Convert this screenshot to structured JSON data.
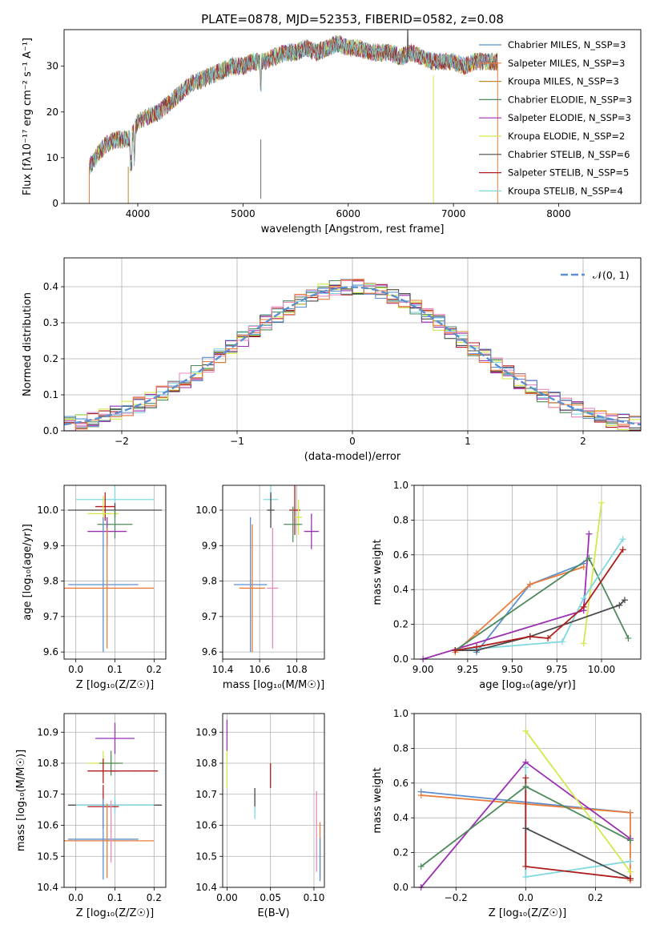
{
  "figure": {
    "title": "PLATE=0878, MJD=52353, FIBERID=0582, z=0.08"
  },
  "colors": {
    "chabrier_miles": "#5b8fd0",
    "salpeter_miles": "#ea7c3b",
    "kroupa_miles": "#c0892c",
    "chabrier_elodie": "#4f8a5e",
    "salpeter_elodie": "#9b2fb2",
    "kroupa_elodie": "#d4e84c",
    "chabrier_stelib": "#4a4a4a",
    "salpeter_stelib": "#b01c1c",
    "kroupa_stelib": "#7fd8e0",
    "pink": "#e88ac0",
    "grid": "#b0b0b0",
    "normal_curve": "#5b8fd0"
  },
  "chart_data": [
    {
      "id": "spectrum",
      "type": "line",
      "title": "PLATE=0878, MJD=52353, FIBERID=0582, z=0.08",
      "xlabel": "wavelength [Angstrom, rest frame]",
      "ylabel": "Flux [fλ10⁻¹⁷ erg cm⁻² s⁻¹ A⁻¹]",
      "xlim": [
        3300,
        8780
      ],
      "ylim": [
        0,
        38
      ],
      "xticks": [
        "4000",
        "5000",
        "6000",
        "7000",
        "8000"
      ],
      "yticks": [
        "0",
        "10",
        "20",
        "30"
      ],
      "legend_position": "top-right",
      "legend": [
        "Chabrier MILES, N_SSP=3",
        "Salpeter MILES, N_SSP=3",
        "Kroupa MILES, N_SSP=3",
        "Chabrier ELODIE, N_SSP=3",
        "Salpeter ELODIE, N_SSP=3",
        "Kroupa ELODIE, N_SSP=2",
        "Chabrier STELIB, N_SSP=6",
        "Salpeter STELIB, N_SSP=5",
        "Kroupa STELIB, N_SSP=4"
      ],
      "envelope": {
        "x": [
          3540,
          3600,
          3700,
          3800,
          3900,
          3950,
          4000,
          4100,
          4200,
          4300,
          4400,
          4500,
          4600,
          4700,
          4800,
          4900,
          5000,
          5100,
          5200,
          5300,
          5400,
          5500,
          5600,
          5700,
          5800,
          5900,
          6000,
          6100,
          6200,
          6300,
          6400,
          6500,
          6600,
          6700,
          6800,
          6900,
          7000,
          7100,
          7200,
          7300,
          7400,
          7420
        ],
        "y": [
          8,
          10,
          13,
          14,
          14,
          15,
          18,
          19,
          20,
          22,
          24,
          26,
          27,
          28,
          29,
          30,
          30,
          31,
          31,
          32,
          33,
          33,
          34,
          33,
          34,
          35,
          34,
          34,
          33,
          33,
          33,
          32,
          33,
          32,
          31,
          31,
          31,
          30,
          31,
          31,
          31,
          31
        ]
      }
    },
    {
      "id": "residuals",
      "type": "histogram",
      "xlabel": "(data-model)/error",
      "ylabel": "Normed distribution",
      "xlim": [
        -2.5,
        2.5
      ],
      "ylim": [
        0,
        0.48
      ],
      "xticks": [
        "−2",
        "−1",
        "0",
        "1",
        "2"
      ],
      "yticks": [
        "0.0",
        "0.1",
        "0.2",
        "0.3",
        "0.4"
      ],
      "bin_width": 0.1,
      "legend_position": "top-right",
      "legend": [
        "𝒩(0, 1)"
      ],
      "normal_curve": {
        "mean": 0,
        "sigma": 1
      }
    },
    {
      "id": "age_vs_Z",
      "type": "errorbar",
      "xlabel": "Z [log₁₀(Z/Z☉)]",
      "ylabel": "age [log₁₀(age/yr)]",
      "xlim": [
        -0.03,
        0.23
      ],
      "ylim": [
        9.58,
        10.07
      ],
      "xticks": [
        "0.0",
        "0.1",
        "0.2"
      ],
      "yticks": [
        "9.6",
        "9.7",
        "9.8",
        "9.9",
        "10.0"
      ],
      "points": [
        {
          "x": 0.1,
          "xe": 0.1,
          "y": 10.03,
          "ye": 0.04,
          "c": "kroupa_stelib"
        },
        {
          "x": 0.1,
          "xe": 0.12,
          "y": 10.0,
          "ye": 0.02,
          "c": "chabrier_stelib"
        },
        {
          "x": 0.075,
          "xe": 0.025,
          "y": 10.01,
          "ye": 0.04,
          "c": "salpeter_stelib"
        },
        {
          "x": 0.07,
          "xe": 0.04,
          "y": 9.99,
          "ye": 0.05,
          "c": "kroupa_elodie"
        },
        {
          "x": 0.1,
          "xe": 0.045,
          "y": 9.96,
          "ye": 0.04,
          "c": "chabrier_elodie"
        },
        {
          "x": 0.08,
          "xe": 0.05,
          "y": 9.94,
          "ye": 0.04,
          "c": "salpeter_elodie"
        },
        {
          "x": 0.07,
          "xe": 0.09,
          "y": 9.79,
          "ye": 0.19,
          "c": "chabrier_miles"
        },
        {
          "x": 0.08,
          "xe": 0.12,
          "y": 9.78,
          "ye": 0.17,
          "c": "salpeter_miles"
        }
      ]
    },
    {
      "id": "age_vs_mass",
      "type": "errorbar",
      "xlabel": "mass [log₁₀(M/M☉)]",
      "ylabel": "",
      "xlim": [
        10.4,
        10.95
      ],
      "ylim": [
        9.58,
        10.07
      ],
      "xticks": [
        "10.4",
        "10.6",
        "10.8"
      ],
      "yticks": [
        "9.6",
        "9.7",
        "9.8",
        "9.9",
        "10.0"
      ],
      "points": [
        {
          "x": 10.66,
          "xe": 0.04,
          "y": 10.03,
          "ye": 0.04,
          "c": "kroupa_stelib"
        },
        {
          "x": 10.66,
          "xe": 0.02,
          "y": 10.0,
          "ye": 0.05,
          "c": "chabrier_stelib"
        },
        {
          "x": 10.79,
          "xe": 0.03,
          "y": 10.0,
          "ye": 0.07,
          "c": "salpeter_stelib"
        },
        {
          "x": 10.81,
          "xe": 0.02,
          "y": 9.98,
          "ye": 0.05,
          "c": "kroupa_elodie"
        },
        {
          "x": 10.78,
          "xe": 0.05,
          "y": 9.96,
          "ye": 0.05,
          "c": "chabrier_elodie"
        },
        {
          "x": 10.88,
          "xe": 0.04,
          "y": 9.94,
          "ye": 0.05,
          "c": "salpeter_elodie"
        },
        {
          "x": 10.55,
          "xe": 0.09,
          "y": 9.79,
          "ye": 0.19,
          "c": "chabrier_miles"
        },
        {
          "x": 10.56,
          "xe": 0.07,
          "y": 9.78,
          "ye": 0.18,
          "c": "salpeter_miles"
        },
        {
          "x": 10.67,
          "xe": 0.03,
          "y": 9.78,
          "ye": 0.17,
          "c": "pink"
        }
      ]
    },
    {
      "id": "weight_vs_age",
      "type": "line",
      "xlabel": "age [log₁₀(age/yr)]",
      "ylabel": "mass weight",
      "xlim": [
        8.95,
        10.22
      ],
      "ylim": [
        0,
        1
      ],
      "xticks": [
        "9.00",
        "9.25",
        "9.50",
        "9.75",
        "10.00"
      ],
      "yticks": [
        "0.0",
        "0.2",
        "0.4",
        "0.6",
        "0.8",
        "1.0"
      ],
      "series": [
        {
          "c": "chabrier_miles",
          "x": [
            9.3,
            9.6,
            9.9
          ],
          "y": [
            0.04,
            0.43,
            0.55
          ]
        },
        {
          "c": "salpeter_miles",
          "x": [
            9.18,
            9.3,
            9.6,
            9.9
          ],
          "y": [
            0.04,
            0.15,
            0.43,
            0.53
          ]
        },
        {
          "c": "salpeter_elodie",
          "x": [
            9.0,
            9.9,
            9.93
          ],
          "y": [
            0.0,
            0.28,
            0.72
          ]
        },
        {
          "c": "chabrier_elodie",
          "x": [
            9.18,
            9.93,
            10.15
          ],
          "y": [
            0.05,
            0.58,
            0.12
          ]
        },
        {
          "c": "kroupa_elodie",
          "x": [
            9.9,
            10.0
          ],
          "y": [
            0.09,
            0.9
          ]
        },
        {
          "c": "kroupa_stelib",
          "x": [
            9.18,
            9.3,
            9.78,
            9.9,
            10.12
          ],
          "y": [
            0.05,
            0.06,
            0.1,
            0.35,
            0.69
          ]
        },
        {
          "c": "chabrier_stelib",
          "x": [
            9.18,
            9.3,
            9.6,
            10.1,
            10.13
          ],
          "y": [
            0.05,
            0.05,
            0.13,
            0.31,
            0.34
          ]
        },
        {
          "c": "salpeter_stelib",
          "x": [
            9.18,
            9.3,
            9.6,
            9.7,
            9.9,
            10.12
          ],
          "y": [
            0.05,
            0.07,
            0.13,
            0.12,
            0.3,
            0.63
          ]
        }
      ]
    },
    {
      "id": "mass_vs_Z",
      "type": "errorbar",
      "xlabel": "Z [log₁₀(Z/Z☉)]",
      "ylabel": "mass [log₁₀(M/M☉)]",
      "xlim": [
        -0.03,
        0.23
      ],
      "ylim": [
        10.4,
        10.96
      ],
      "xticks": [
        "0.0",
        "0.1",
        "0.2"
      ],
      "yticks": [
        "10.4",
        "10.5",
        "10.6",
        "10.7",
        "10.8",
        "10.9"
      ],
      "points": [
        {
          "x": 0.1,
          "xe": 0.05,
          "y": 10.88,
          "ye": 0.05,
          "c": "salpeter_elodie"
        },
        {
          "x": 0.07,
          "xe": 0.04,
          "y": 10.8,
          "ye": 0.04,
          "c": "kroupa_elodie"
        },
        {
          "x": 0.09,
          "xe": 0.03,
          "y": 10.8,
          "ye": 0.04,
          "c": "chabrier_elodie"
        },
        {
          "x": 0.07,
          "xe": 0.04,
          "y": 10.775,
          "ye": 0.04,
          "c": "salpeter_stelib"
        },
        {
          "x": 0.15,
          "xe": 0.06,
          "y": 10.775,
          "ye": 0.002,
          "c": "salpeter_stelib"
        },
        {
          "x": 0.1,
          "xe": 0.12,
          "y": 10.665,
          "ye": 0.01,
          "c": "chabrier_stelib"
        },
        {
          "x": 0.1,
          "xe": 0.1,
          "y": 10.665,
          "ye": 0.03,
          "c": "kroupa_stelib"
        },
        {
          "x": 0.07,
          "xe": 0.04,
          "y": 10.66,
          "ye": 0.07,
          "c": "salpeter_stelib"
        },
        {
          "x": 0.07,
          "xe": 0.09,
          "y": 10.555,
          "ye": 0.13,
          "c": "chabrier_miles"
        },
        {
          "x": 0.08,
          "xe": 0.12,
          "y": 10.55,
          "ye": 0.12,
          "c": "salpeter_miles"
        },
        {
          "x": 0.09,
          "xe": 0.002,
          "y": 10.58,
          "ye": 0.1,
          "c": "pink"
        }
      ]
    },
    {
      "id": "mass_vs_ebv",
      "type": "errorbar",
      "xlabel": "E(B-V)",
      "ylabel": "",
      "xlim": [
        -0.005,
        0.112
      ],
      "ylim": [
        10.4,
        10.96
      ],
      "xticks": [
        "0.00",
        "0.05",
        "0.10"
      ],
      "yticks": [
        "10.4",
        "10.5",
        "10.6",
        "10.7",
        "10.8",
        "10.9"
      ],
      "points": [
        {
          "x": 0.0,
          "xe": 0.0,
          "y": 10.89,
          "ye": 0.05,
          "c": "salpeter_elodie"
        },
        {
          "x": 0.0,
          "xe": 0.0,
          "y": 10.78,
          "ye": 0.06,
          "c": "kroupa_elodie"
        },
        {
          "x": 0.05,
          "xe": 0.0,
          "y": 10.76,
          "ye": 0.04,
          "c": "salpeter_stelib"
        },
        {
          "x": 0.032,
          "xe": 0.0,
          "y": 10.69,
          "ye": 0.03,
          "c": "chabrier_stelib"
        },
        {
          "x": 0.032,
          "xe": 0.0,
          "y": 10.64,
          "ye": 0.02,
          "c": "kroupa_stelib"
        },
        {
          "x": 0.103,
          "xe": 0.0,
          "y": 10.58,
          "ye": 0.13,
          "c": "pink"
        },
        {
          "x": 0.107,
          "xe": 0.0,
          "y": 10.52,
          "ye": 0.09,
          "c": "salpeter_miles"
        },
        {
          "x": 0.107,
          "xe": 0.0,
          "y": 10.49,
          "ye": 0.07,
          "c": "chabrier_miles"
        }
      ]
    },
    {
      "id": "weight_vs_Z",
      "type": "line",
      "xlabel": "Z [log₁₀(Z/Z☉)]",
      "ylabel": "mass weight",
      "xlim": [
        -0.32,
        0.33
      ],
      "ylim": [
        0,
        1
      ],
      "xticks": [
        "−0.2",
        "0.0",
        "0.2"
      ],
      "yticks": [
        "0.0",
        "0.2",
        "0.4",
        "0.6",
        "0.8",
        "1.0"
      ],
      "series": [
        {
          "c": "chabrier_miles",
          "x": [
            -0.3,
            0.3
          ],
          "y": [
            0.55,
            0.43
          ]
        },
        {
          "c": "salpeter_miles",
          "x": [
            -0.3,
            0.3,
            0.3
          ],
          "y": [
            0.53,
            0.43,
            0.04
          ]
        },
        {
          "c": "salpeter_elodie",
          "x": [
            -0.3,
            0.0,
            0.3
          ],
          "y": [
            0.0,
            0.72,
            0.28
          ]
        },
        {
          "c": "chabrier_elodie",
          "x": [
            -0.3,
            0.0,
            0.3
          ],
          "y": [
            0.12,
            0.58,
            0.27
          ]
        },
        {
          "c": "kroupa_elodie",
          "x": [
            0.0,
            0.3
          ],
          "y": [
            0.9,
            0.09
          ]
        },
        {
          "c": "kroupa_stelib",
          "x": [
            0.0,
            0.0,
            0.3
          ],
          "y": [
            0.69,
            0.06,
            0.15
          ]
        },
        {
          "c": "chabrier_stelib",
          "x": [
            0.0,
            0.3
          ],
          "y": [
            0.34,
            0.05
          ]
        },
        {
          "c": "salpeter_stelib",
          "x": [
            0.0,
            0.0,
            0.3
          ],
          "y": [
            0.63,
            0.12,
            0.05
          ]
        }
      ]
    }
  ]
}
